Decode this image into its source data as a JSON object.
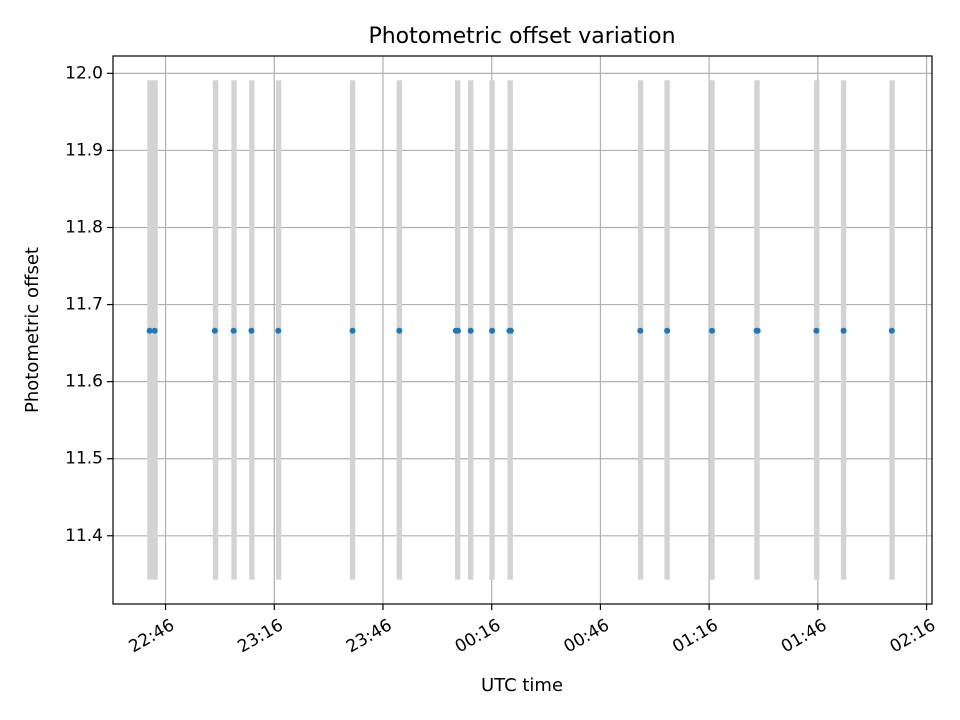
{
  "chart_data": {
    "type": "scatter",
    "title": "Photometric offset variation",
    "xlabel": "UTC time",
    "ylabel": "Photometric offset",
    "x_reference_time": "22:46",
    "x_unit": "minutes",
    "xlim": [
      -14.5,
      211.5
    ],
    "ylim": [
      11.3115,
      12.0225
    ],
    "grid": true,
    "x_ticks": [
      {
        "value": 0,
        "label": "22:46"
      },
      {
        "value": 30,
        "label": "23:16"
      },
      {
        "value": 60,
        "label": "23:46"
      },
      {
        "value": 90,
        "label": "00:16"
      },
      {
        "value": 120,
        "label": "00:46"
      },
      {
        "value": 150,
        "label": "01:16"
      },
      {
        "value": 180,
        "label": "01:46"
      },
      {
        "value": 210,
        "label": "02:16"
      }
    ],
    "y_ticks": [
      {
        "value": 11.4,
        "label": "11.4"
      },
      {
        "value": 11.5,
        "label": "11.5"
      },
      {
        "value": 11.6,
        "label": "11.6"
      },
      {
        "value": 11.7,
        "label": "11.7"
      },
      {
        "value": 11.8,
        "label": "11.8"
      },
      {
        "value": 11.9,
        "label": "11.9"
      },
      {
        "value": 12.0,
        "label": "12.0"
      }
    ],
    "bands": {
      "ymin": 11.343,
      "ymax": 11.991,
      "color": "#d3d3d3",
      "x": [
        -4.3,
        -2.9,
        13.8,
        18.9,
        23.8,
        31.2,
        51.6,
        64.5,
        80.6,
        84.2,
        90.1,
        95.1,
        131.1,
        138.4,
        150.8,
        163.2,
        179.7,
        187.1,
        200.5
      ]
    },
    "points": {
      "color": "#1f77b4",
      "y": 11.666,
      "x": [
        -4.4,
        -3.0,
        13.6,
        18.8,
        23.7,
        31.1,
        51.6,
        64.5,
        80.1,
        80.7,
        84.2,
        90.1,
        94.9,
        95.3,
        131.0,
        138.4,
        150.8,
        163.1,
        163.4,
        179.6,
        187.1,
        200.4
      ]
    }
  }
}
